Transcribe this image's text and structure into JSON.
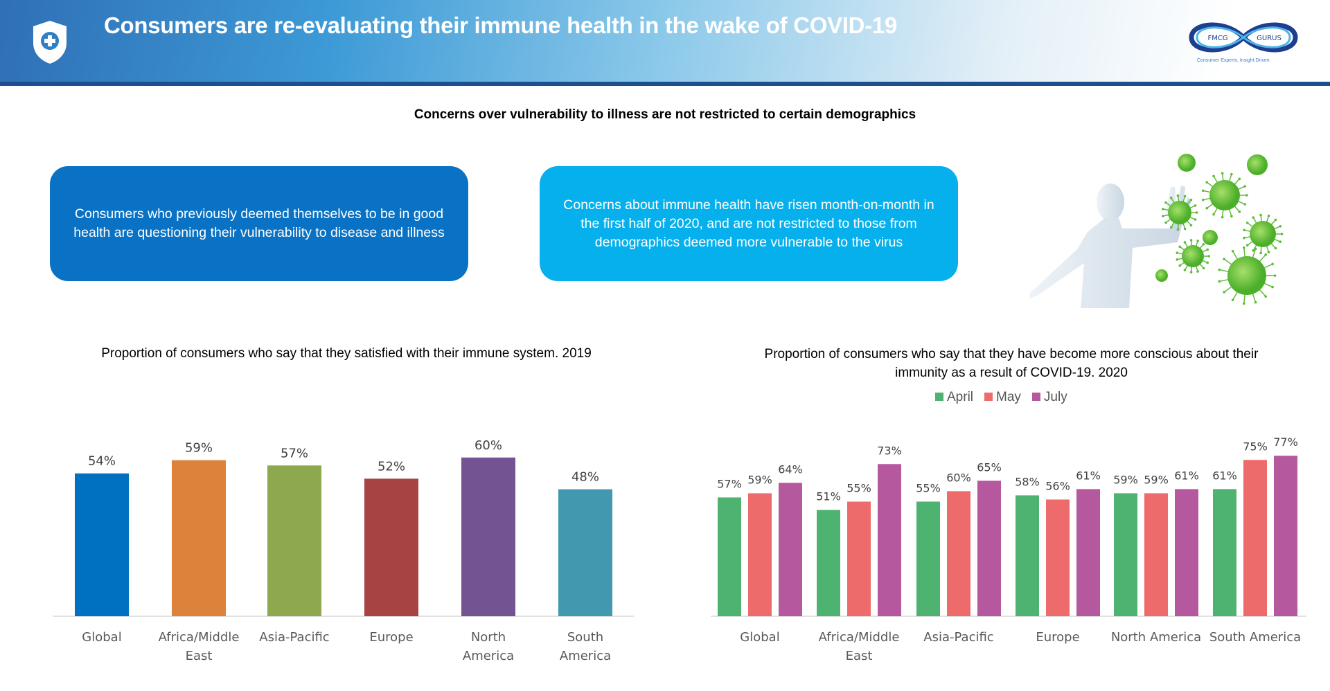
{
  "header": {
    "title": "Consumers are re-evaluating their immune health in the wake of COVID-19",
    "logo_text_left": "FMCG",
    "logo_text_right": "GURUS",
    "logo_tagline": "Consumer Experts, Insight Driven"
  },
  "subtitle": "Concerns over vulnerability to illness are not restricted to certain demographics",
  "boxes": [
    {
      "text": "Consumers who previously deemed themselves to be in good health are questioning their vulnerability to disease and illness"
    },
    {
      "text": "Concerns about immune health have risen month-on-month in the first half of 2020, and are not restricted to those from demographics deemed more vulnerable to the virus"
    }
  ],
  "colors": {
    "header_line": "#1d4f8f",
    "box1": "#0a72c4",
    "box2": "#06b0ec"
  },
  "chart_data": [
    {
      "type": "bar",
      "title": "Proportion of consumers who say that they satisfied with their immune system. 2019",
      "categories": [
        "Global",
        "Africa/Middle East",
        "Asia-Pacific",
        "Europe",
        "North America",
        "South America"
      ],
      "category_lines": [
        [
          "Global"
        ],
        [
          "Africa/Middle",
          "East"
        ],
        [
          "Asia-Pacific"
        ],
        [
          "Europe"
        ],
        [
          "North",
          "America"
        ],
        [
          "South",
          "America"
        ]
      ],
      "values": [
        54,
        59,
        57,
        52,
        60,
        48
      ],
      "labels": [
        "54%",
        "59%",
        "57%",
        "52%",
        "60%",
        "48%"
      ],
      "bar_colors": [
        "#0070c0",
        "#dd823b",
        "#8ea84e",
        "#a84343",
        "#735391",
        "#4198af"
      ],
      "grid": false,
      "unit": "%"
    },
    {
      "type": "bar",
      "title": "Proportion of consumers who say that they have become more conscious about their immunity as a result of COVID-19. 2020",
      "categories": [
        "Global",
        "Africa/Middle East",
        "Asia-Pacific",
        "Europe",
        "North America",
        "South America"
      ],
      "category_lines": [
        [
          "Global"
        ],
        [
          "Africa/Middle",
          "East"
        ],
        [
          "Asia-Pacific"
        ],
        [
          "Europe"
        ],
        [
          "North America"
        ],
        [
          "South America"
        ]
      ],
      "legend_position": "top",
      "grid": false,
      "unit": "%",
      "series": [
        {
          "name": "April",
          "color": "#4eb370",
          "values": [
            57,
            51,
            55,
            58,
            59,
            61
          ]
        },
        {
          "name": "May",
          "color": "#ee6b6b",
          "values": [
            59,
            55,
            60,
            56,
            59,
            75
          ]
        },
        {
          "name": "July",
          "color": "#b5589e",
          "values": [
            64,
            73,
            65,
            61,
            61,
            77
          ]
        }
      ]
    }
  ]
}
